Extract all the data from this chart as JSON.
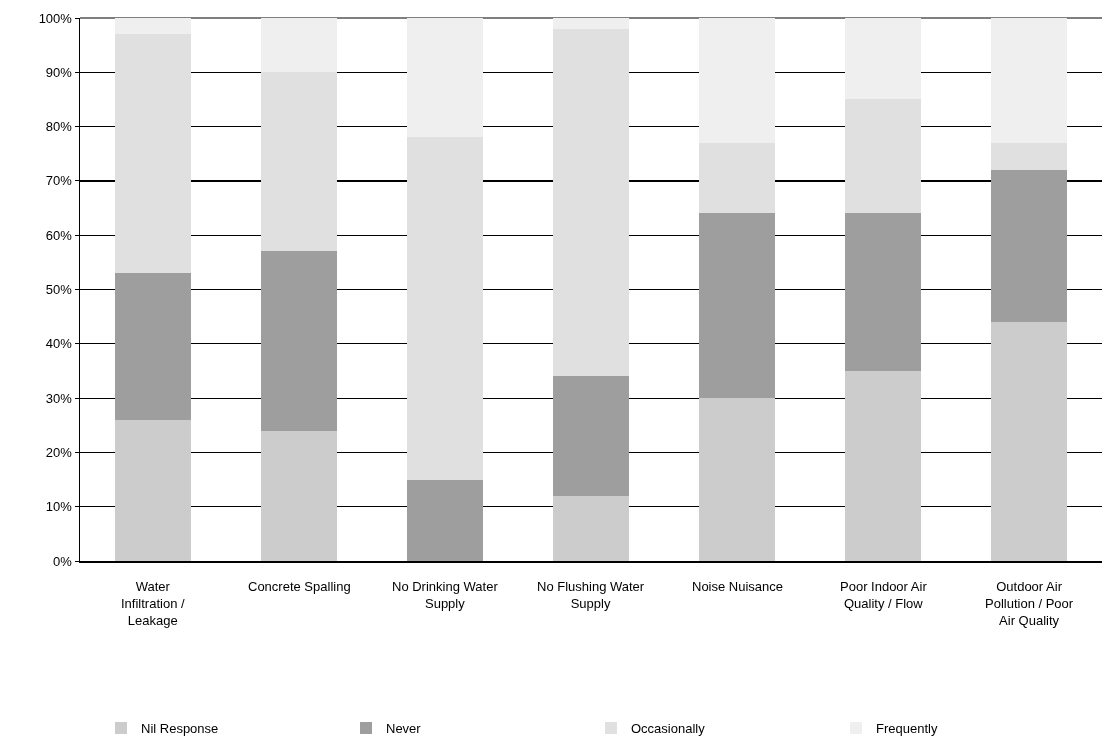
{
  "chart_data": {
    "type": "bar",
    "stacked": true,
    "categories": [
      "Water Infiltration / Leakage",
      "Concrete Spalling",
      "No Drinking Water Supply",
      "No Flushing Water Supply",
      "Noise Nuisance",
      "Poor Indoor Air Quality / Flow",
      "Outdoor Air Pollution / Poor Air Quality"
    ],
    "series": [
      {
        "name": "Nil Response",
        "color": "#cccccc",
        "values": [
          26,
          24,
          0,
          12,
          30,
          35,
          44
        ]
      },
      {
        "name": "Never",
        "color": "#9e9e9e",
        "values": [
          27,
          33,
          15,
          22,
          34,
          29,
          28
        ]
      },
      {
        "name": "Occasionally",
        "color": "#e0e0e0",
        "values": [
          44,
          33,
          63,
          64,
          13,
          21,
          5
        ]
      },
      {
        "name": "Frequently",
        "color": "#efefef",
        "values": [
          3,
          10,
          22,
          2,
          23,
          15,
          23
        ]
      }
    ],
    "ylim": [
      0,
      100
    ],
    "yticks": [
      {
        "value": 0,
        "label": "0%"
      },
      {
        "value": 10,
        "label": "10%"
      },
      {
        "value": 20,
        "label": "20%"
      },
      {
        "value": 30,
        "label": "30%"
      },
      {
        "value": 40,
        "label": "40%"
      },
      {
        "value": 50,
        "label": "50%"
      },
      {
        "value": 60,
        "label": "60%"
      },
      {
        "value": 70,
        "label": "70%"
      },
      {
        "value": 80,
        "label": "80%"
      },
      {
        "value": 90,
        "label": "90%"
      },
      {
        "value": 100,
        "label": "100%"
      }
    ],
    "grid": "y",
    "legend": "bottom"
  }
}
